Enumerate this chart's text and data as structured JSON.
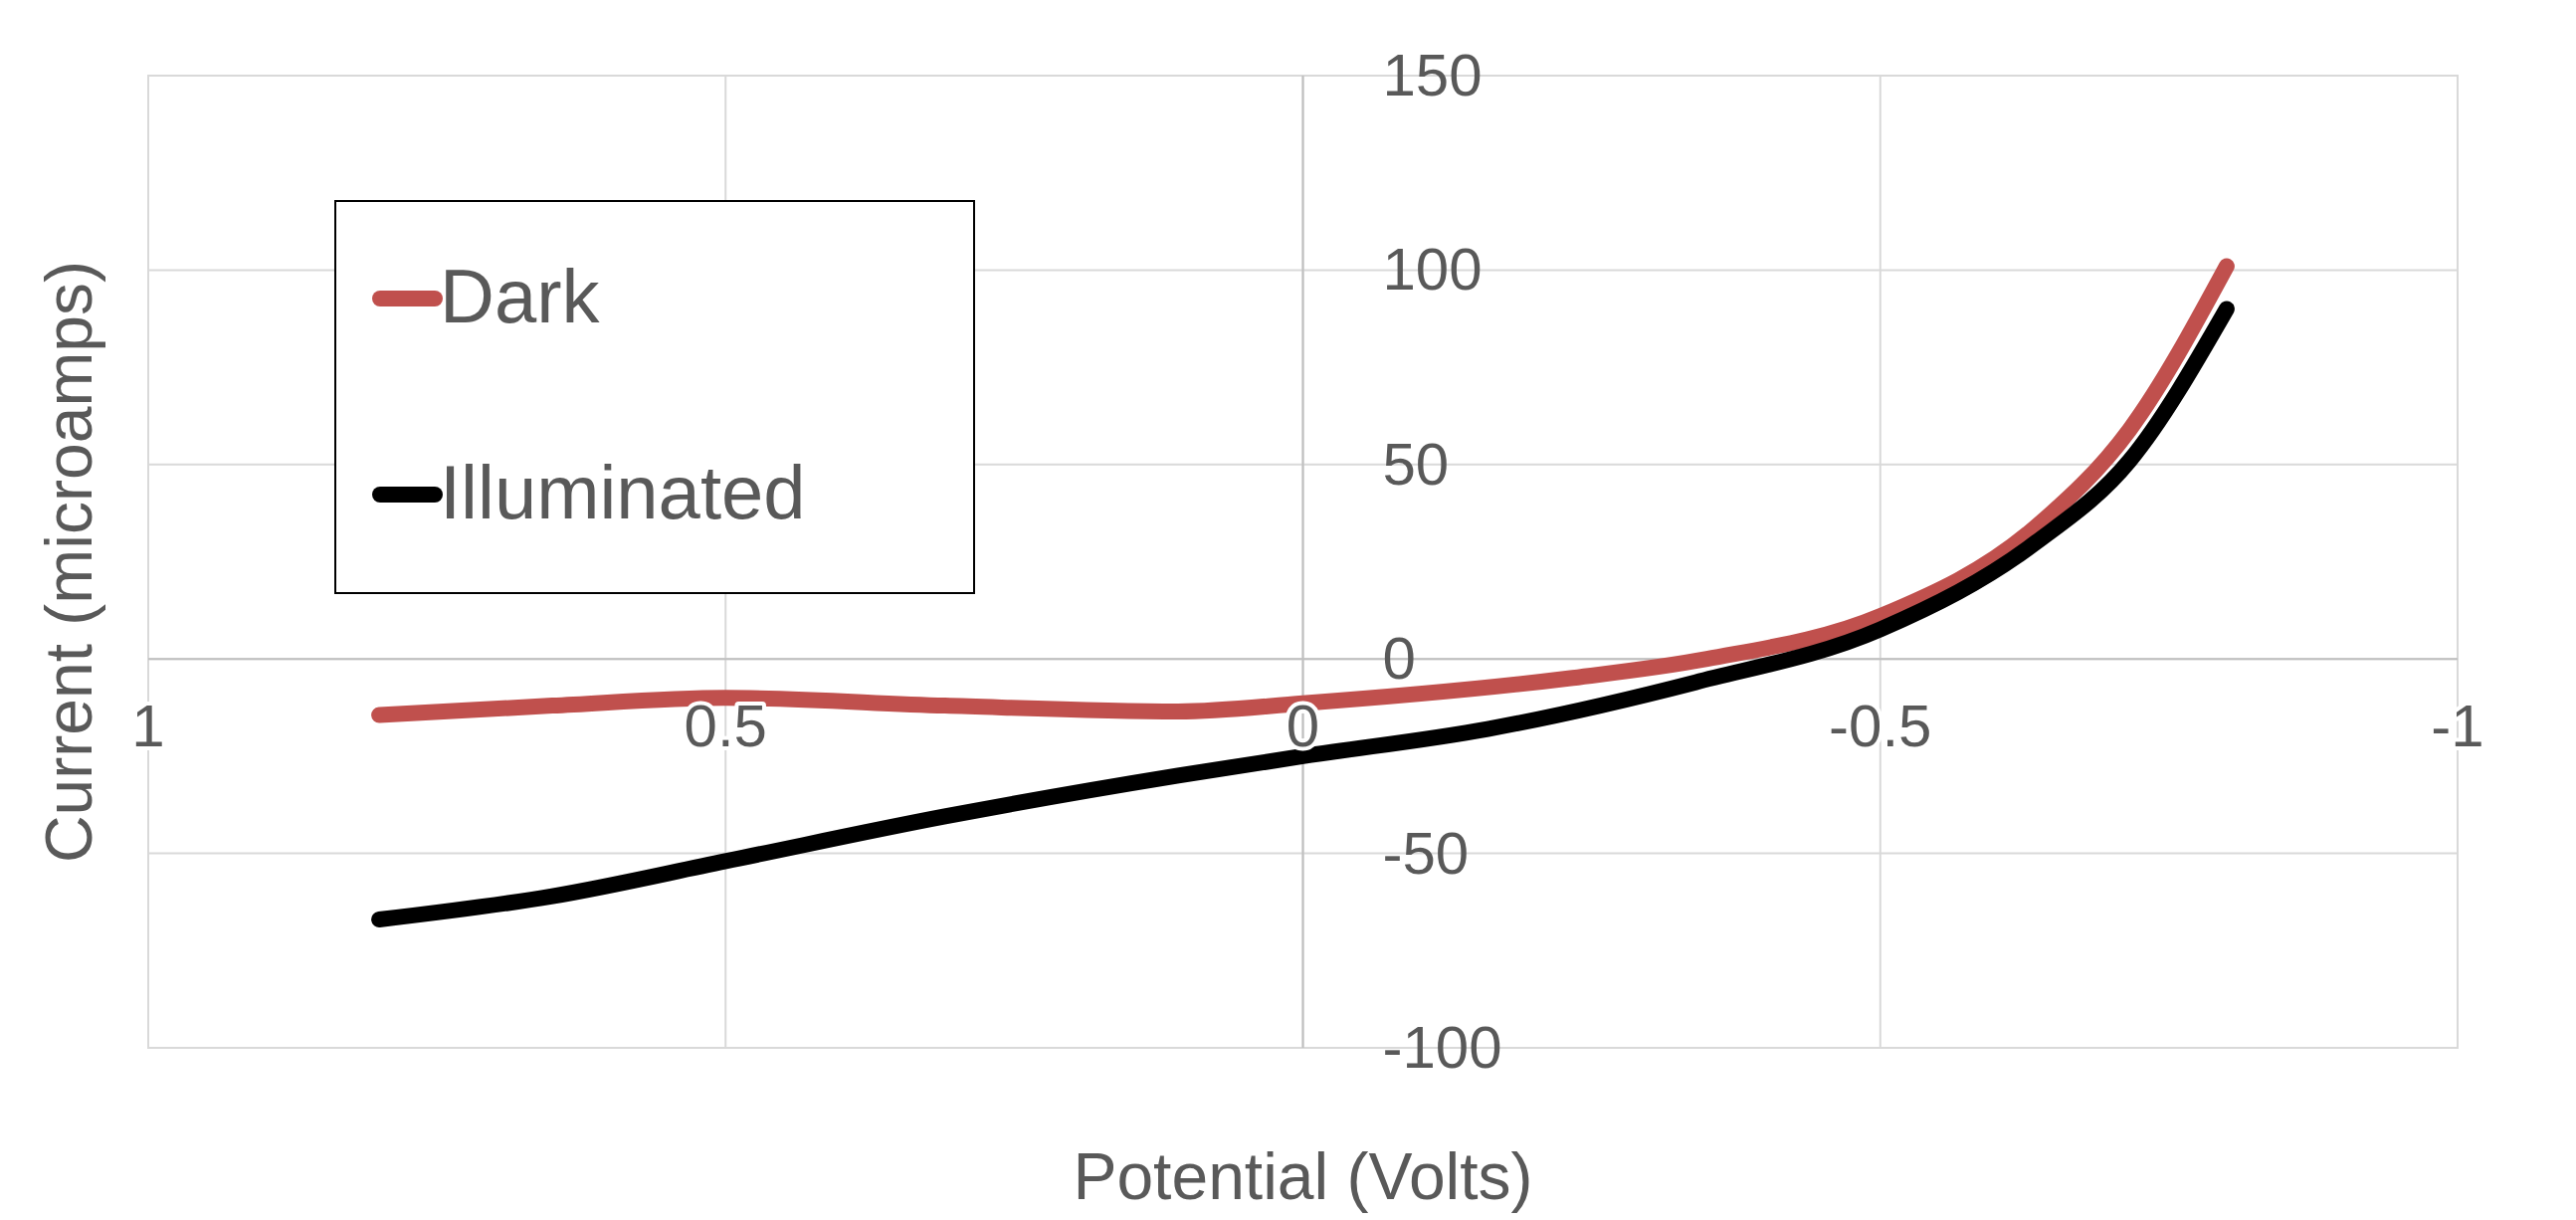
{
  "chart_data": {
    "type": "line",
    "xlabel": "Potential (Volts)",
    "ylabel": "Current (microamps)",
    "xlim": [
      1,
      -1
    ],
    "xticks": [
      1,
      0.5,
      0,
      -0.5,
      -1
    ],
    "ylim": [
      -100,
      150
    ],
    "yticks": [
      -100,
      -50,
      0,
      50,
      100,
      150
    ],
    "grid": true,
    "legend": "top left",
    "marker": "none",
    "line_style": "solid",
    "series": [
      {
        "name": "Dark",
        "color": "#c0504d",
        "x": [
          0.8,
          0.65,
          0.5,
          0.31,
          0.108,
          0,
          -0.23,
          -0.35,
          -0.5,
          -0.635,
          -0.716,
          -0.8
        ],
        "values": [
          -14.4,
          -12,
          -10,
          -12,
          -13.5,
          -11.4,
          -5,
          0,
          11,
          34,
          59,
          101
        ]
      },
      {
        "name": "Illuminated",
        "color": "#000000",
        "x": [
          0.8,
          0.65,
          0.5,
          0.31,
          0.108,
          0,
          -0.16,
          -0.34,
          -0.5,
          -0.635,
          -0.716,
          -0.8
        ],
        "values": [
          -67,
          -61,
          -52,
          -40.5,
          -30,
          -25,
          -18,
          -6,
          7.6,
          30,
          51,
          90
        ]
      }
    ]
  }
}
